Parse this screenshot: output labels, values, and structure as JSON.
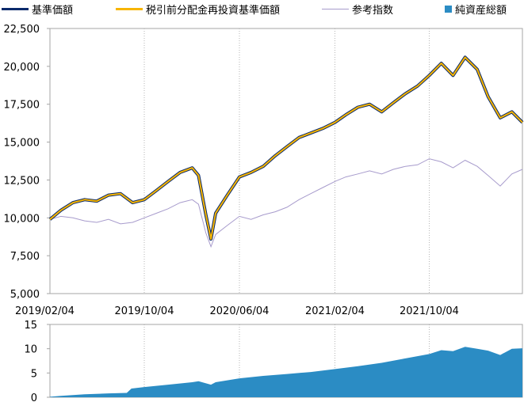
{
  "legend": {
    "items": [
      {
        "label": "基準価額",
        "color": "#0a2a6b",
        "kind": "line"
      },
      {
        "label": "税引前分配金再投資基準価額",
        "color": "#f7b500",
        "kind": "line"
      },
      {
        "label": "参考指数",
        "color": "#a79bcc",
        "kind": "thin"
      },
      {
        "label": "純資産総額",
        "color": "#2b8cc4",
        "kind": "box"
      }
    ]
  },
  "chart_data": [
    {
      "type": "line",
      "title": "",
      "x_tick_labels": [
        "2019/02/04",
        "2019/10/04",
        "2020/06/04",
        "2021/02/04",
        "2021/10/04"
      ],
      "x_range": [
        "2019/02/04",
        "2022/05/31"
      ],
      "y_ticks": [
        "5,000",
        "7,500",
        "10,000",
        "12,500",
        "15,000",
        "17,500",
        "20,000",
        "22,500"
      ],
      "ylim": [
        5000,
        22500
      ],
      "grid": "vertical dotted",
      "series": [
        {
          "name": "基準価額",
          "color": "#0a2a6b",
          "x": [
            "2019-02-04",
            "2019-03-04",
            "2019-04-04",
            "2019-05-04",
            "2019-06-04",
            "2019-07-04",
            "2019-08-04",
            "2019-09-04",
            "2019-10-04",
            "2019-11-04",
            "2019-12-04",
            "2020-01-04",
            "2020-02-04",
            "2020-02-20",
            "2020-03-10",
            "2020-03-23",
            "2020-04-04",
            "2020-05-04",
            "2020-06-04",
            "2020-07-04",
            "2020-08-04",
            "2020-09-04",
            "2020-10-04",
            "2020-11-04",
            "2020-12-04",
            "2021-01-04",
            "2021-02-04",
            "2021-03-04",
            "2021-04-04",
            "2021-05-04",
            "2021-06-04",
            "2021-07-04",
            "2021-08-04",
            "2021-09-04",
            "2021-10-04",
            "2021-11-04",
            "2021-12-04",
            "2022-01-04",
            "2022-02-04",
            "2022-03-04",
            "2022-04-04",
            "2022-05-04",
            "2022-05-31"
          ],
          "values": [
            9900,
            10500,
            11000,
            11200,
            11100,
            11500,
            11600,
            11000,
            11200,
            11800,
            12400,
            13000,
            13300,
            12800,
            10200,
            8600,
            10300,
            11500,
            12700,
            13000,
            13400,
            14100,
            14700,
            15300,
            15600,
            15900,
            16300,
            16800,
            17300,
            17500,
            17000,
            17600,
            18200,
            18700,
            19400,
            20200,
            19400,
            20600,
            19800,
            18000,
            16600,
            17000,
            16300
          ]
        },
        {
          "name": "税引前分配金再投資基準価額",
          "color": "#f7b500",
          "x": [
            "2019-02-04",
            "2019-03-04",
            "2019-04-04",
            "2019-05-04",
            "2019-06-04",
            "2019-07-04",
            "2019-08-04",
            "2019-09-04",
            "2019-10-04",
            "2019-11-04",
            "2019-12-04",
            "2020-01-04",
            "2020-02-04",
            "2020-02-20",
            "2020-03-10",
            "2020-03-23",
            "2020-04-04",
            "2020-05-04",
            "2020-06-04",
            "2020-07-04",
            "2020-08-04",
            "2020-09-04",
            "2020-10-04",
            "2020-11-04",
            "2020-12-04",
            "2021-01-04",
            "2021-02-04",
            "2021-03-04",
            "2021-04-04",
            "2021-05-04",
            "2021-06-04",
            "2021-07-04",
            "2021-08-04",
            "2021-09-04",
            "2021-10-04",
            "2021-11-04",
            "2021-12-04",
            "2022-01-04",
            "2022-02-04",
            "2022-03-04",
            "2022-04-04",
            "2022-05-04",
            "2022-05-31"
          ],
          "values": [
            9900,
            10500,
            11000,
            11200,
            11100,
            11500,
            11600,
            11000,
            11200,
            11800,
            12400,
            13000,
            13300,
            12800,
            10200,
            8600,
            10300,
            11500,
            12700,
            13000,
            13400,
            14100,
            14700,
            15300,
            15600,
            15900,
            16300,
            16800,
            17300,
            17500,
            17000,
            17600,
            18200,
            18700,
            19400,
            20200,
            19400,
            20600,
            19800,
            18000,
            16600,
            17000,
            16300
          ]
        },
        {
          "name": "参考指数",
          "color": "#a79bcc",
          "x": [
            "2019-02-04",
            "2019-03-04",
            "2019-04-04",
            "2019-05-04",
            "2019-06-04",
            "2019-07-04",
            "2019-08-04",
            "2019-09-04",
            "2019-10-04",
            "2019-11-04",
            "2019-12-04",
            "2020-01-04",
            "2020-02-04",
            "2020-02-20",
            "2020-03-10",
            "2020-03-23",
            "2020-04-04",
            "2020-05-04",
            "2020-06-04",
            "2020-07-04",
            "2020-08-04",
            "2020-09-04",
            "2020-10-04",
            "2020-11-04",
            "2020-12-04",
            "2021-01-04",
            "2021-02-04",
            "2021-03-04",
            "2021-04-04",
            "2021-05-04",
            "2021-06-04",
            "2021-07-04",
            "2021-08-04",
            "2021-09-04",
            "2021-10-04",
            "2021-11-04",
            "2021-12-04",
            "2022-01-04",
            "2022-02-04",
            "2022-03-04",
            "2022-04-04",
            "2022-05-04",
            "2022-05-31"
          ],
          "values": [
            9900,
            10100,
            10000,
            9800,
            9700,
            9900,
            9600,
            9700,
            10000,
            10300,
            10600,
            11000,
            11200,
            10900,
            9000,
            8100,
            8900,
            9500,
            10100,
            9900,
            10200,
            10400,
            10700,
            11200,
            11600,
            12000,
            12400,
            12700,
            12900,
            13100,
            12900,
            13200,
            13400,
            13500,
            13900,
            13700,
            13300,
            13800,
            13400,
            12800,
            12100,
            12900,
            13200
          ]
        }
      ]
    },
    {
      "type": "area",
      "series": [
        {
          "name": "純資産総額",
          "color": "#2b8cc4",
          "x": [
            "2019-02-04",
            "2019-03-04",
            "2019-05-04",
            "2019-07-04",
            "2019-08-20",
            "2019-09-01",
            "2019-10-04",
            "2019-12-04",
            "2020-02-04",
            "2020-02-20",
            "2020-03-23",
            "2020-04-04",
            "2020-06-04",
            "2020-08-04",
            "2020-10-04",
            "2020-12-04",
            "2021-02-04",
            "2021-04-04",
            "2021-06-04",
            "2021-08-04",
            "2021-10-04",
            "2021-11-04",
            "2021-12-04",
            "2022-01-04",
            "2022-02-04",
            "2022-03-04",
            "2022-04-04",
            "2022-05-04",
            "2022-05-31"
          ],
          "values": [
            0.1,
            0.3,
            0.6,
            0.8,
            0.9,
            1.8,
            2.1,
            2.6,
            3.1,
            3.3,
            2.6,
            3.1,
            3.9,
            4.4,
            4.8,
            5.2,
            5.8,
            6.4,
            7.1,
            8.0,
            8.9,
            9.7,
            9.5,
            10.4,
            10.0,
            9.6,
            8.7,
            10.0,
            10.1
          ]
        }
      ],
      "x_range": [
        "2019/02/04",
        "2022/05/31"
      ],
      "y_ticks": [
        "0",
        "5",
        "10",
        "15"
      ],
      "ylim": [
        0,
        15
      ]
    }
  ]
}
